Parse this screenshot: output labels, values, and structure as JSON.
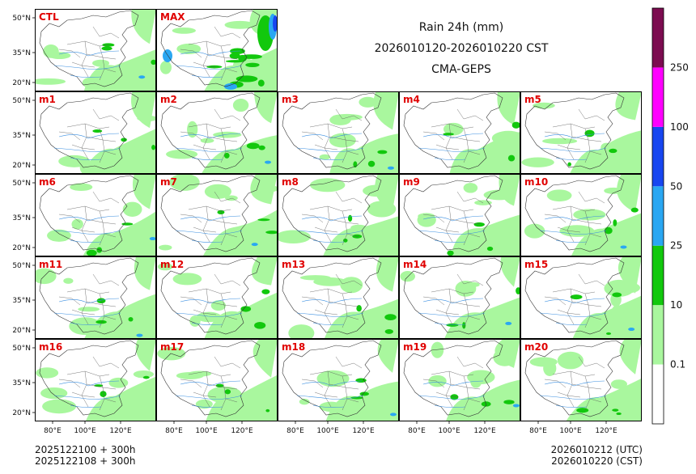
{
  "title": {
    "line1": "Rain 24h (mm)",
    "line2": "2026010120-2026010220 CST",
    "line3": "CMA-GEPS"
  },
  "footer": {
    "left_line1": "2025122100 + 300h",
    "left_line2": "2025122108 + 300h",
    "right_line1": "2026010212 (UTC)",
    "right_line2": "2026010220 (CST)"
  },
  "chart_data": {
    "type": "heatmap",
    "description_title": "Rain 24h (mm)",
    "panels": [
      "CTL",
      "MAX",
      "m1",
      "m2",
      "m3",
      "m4",
      "m5",
      "m6",
      "m7",
      "m8",
      "m9",
      "m10",
      "m11",
      "m12",
      "m13",
      "m14",
      "m15",
      "m16",
      "m17",
      "m18",
      "m19",
      "m20"
    ],
    "lat_ticks": [
      "50°N",
      "35°N",
      "20°N"
    ],
    "lon_ticks": [
      "80°E",
      "100°E",
      "120°E"
    ],
    "colorbar": {
      "levels": [
        "0.1",
        "10",
        "25",
        "50",
        "100",
        "250"
      ],
      "colors": [
        "#ffffff",
        "#a9f79e",
        "#12c80d",
        "#2aa7f2",
        "#1846f0",
        "#ff00ff",
        "#7c0c50"
      ]
    }
  }
}
